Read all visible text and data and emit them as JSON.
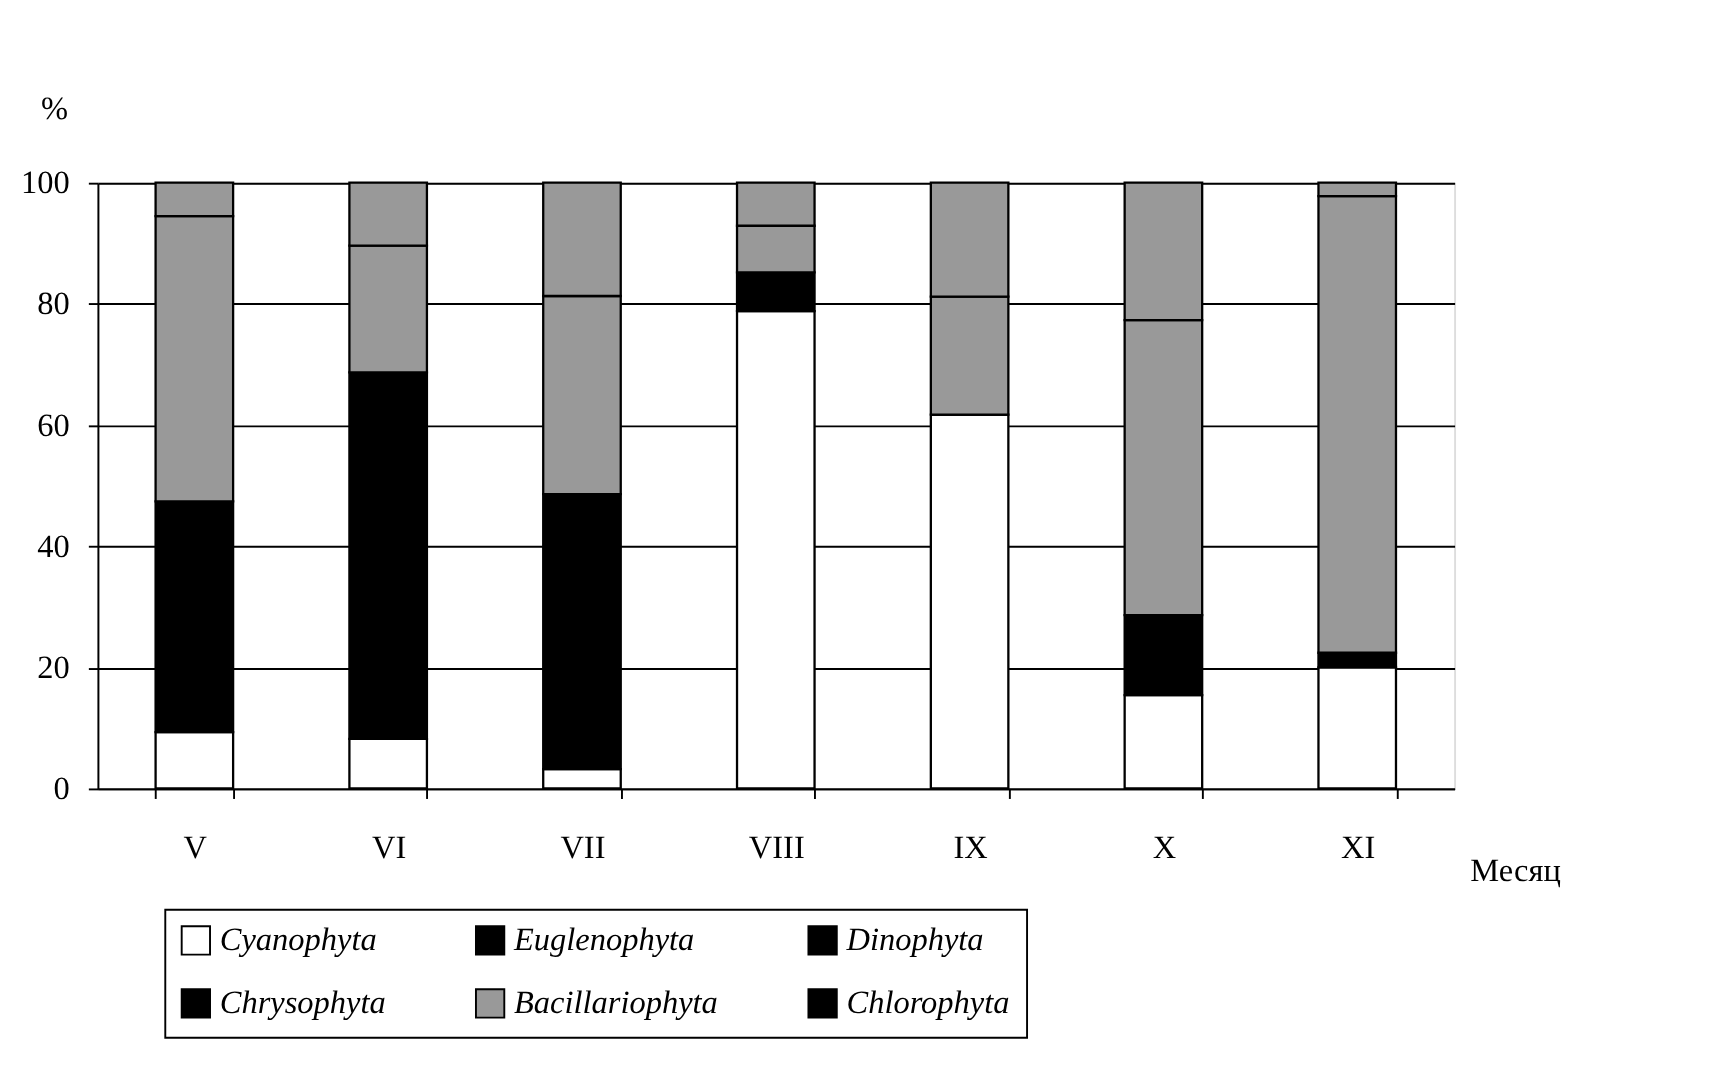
{
  "chart_data": {
    "type": "bar",
    "stacked": true,
    "xlabel": "Месяц",
    "ylabel": "%",
    "categories": [
      "V",
      "VI",
      "VII",
      "VIII",
      "IX",
      "X",
      "XI"
    ],
    "series": [
      {
        "name": "Cyanophyta",
        "color": "#ffffff",
        "values": [
          9.3,
          8.2,
          3.2,
          78.8,
          61.7,
          15.4,
          20.0
        ]
      },
      {
        "name": "Euglenophyta",
        "color": "#000000",
        "values": [
          null,
          null,
          null,
          null,
          null,
          null,
          null
        ]
      },
      {
        "name": "Dinophyta",
        "color": "#000000",
        "values": [
          null,
          null,
          null,
          null,
          null,
          null,
          null
        ]
      },
      {
        "name": "Chrysophyta",
        "color": "#000000",
        "values": [
          38.1,
          60.5,
          45.4,
          6.4,
          0,
          13.2,
          2.4
        ]
      },
      {
        "name": "Bacillariophyta",
        "color": "#999999",
        "values": [
          47.1,
          20.9,
          32.7,
          7.7,
          19.5,
          48.7,
          75.4
        ]
      },
      {
        "name": "Chlorophyta",
        "color": "#000000",
        "values": [
          null,
          null,
          null,
          null,
          null,
          null,
          null
        ]
      },
      {
        "color": "#999999",
        "values": [
          5.5,
          10.4,
          18.7,
          7.1,
          18.8,
          22.7,
          2.2
        ]
      }
    ],
    "ylim": [
      0,
      100
    ],
    "yticks": [
      0,
      20,
      40,
      60,
      80,
      100
    ],
    "grid": "y",
    "legend": "bottom"
  }
}
